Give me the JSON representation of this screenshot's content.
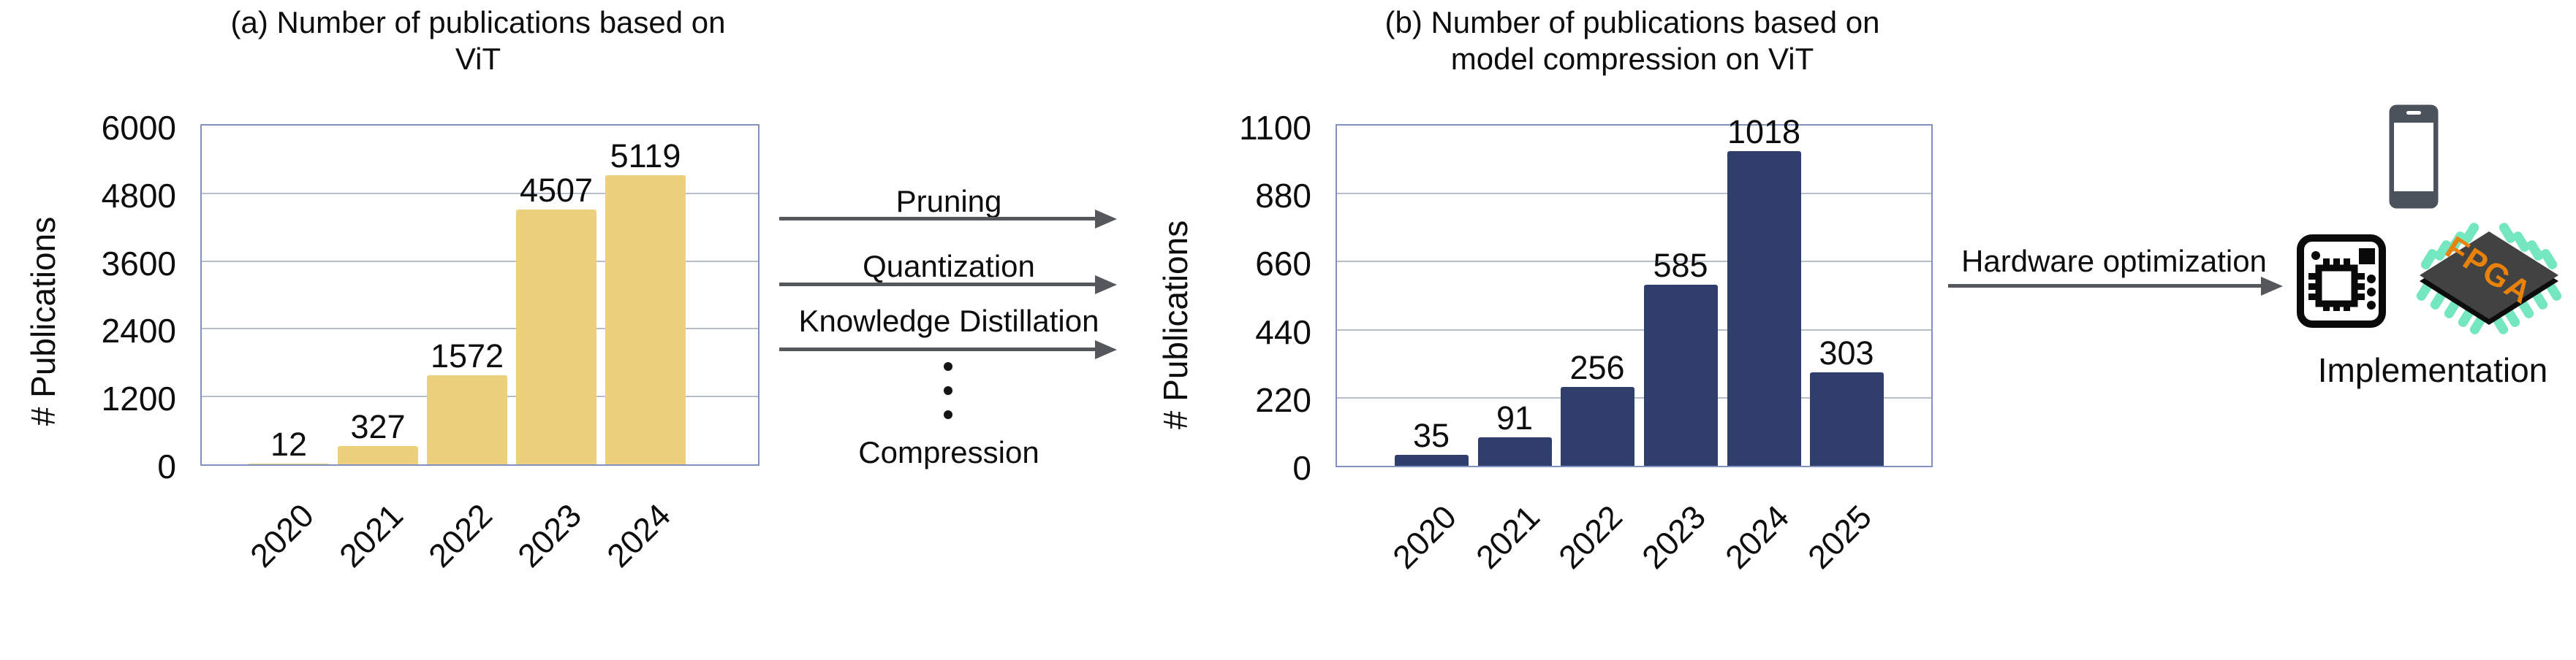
{
  "chart_data": [
    {
      "panel": "a",
      "type": "bar",
      "title": "(a) Number of publications based on ViT",
      "title_lines": [
        "(a) Number of publications based on",
        "ViT"
      ],
      "categories": [
        "2020",
        "2021",
        "2022",
        "2023",
        "2024"
      ],
      "values": [
        12,
        327,
        1572,
        4507,
        5119
      ],
      "xlabel": "",
      "ylabel": "# Publications",
      "ylim": [
        0,
        6000
      ],
      "yticks": [
        0,
        1200,
        2400,
        3600,
        4800,
        6000
      ],
      "grid": true,
      "legend": false,
      "value_labels": [
        12,
        327,
        1572,
        4507,
        5119
      ],
      "bar_color": "#edd07b"
    },
    {
      "panel": "b",
      "type": "bar",
      "title": "(b) Number of publications based on model compression on ViT",
      "title_lines": [
        "(b) Number of publications based on",
        "model compression on ViT"
      ],
      "categories": [
        "2020",
        "2021",
        "2022",
        "2023",
        "2024",
        "2025"
      ],
      "values": [
        35,
        91,
        256,
        585,
        1018,
        303
      ],
      "xlabel": "",
      "ylabel": "# Publications",
      "ylim": [
        0,
        1100
      ],
      "yticks": [
        0,
        220,
        440,
        660,
        880,
        1100
      ],
      "grid": true,
      "legend": false,
      "value_labels": [
        35,
        91,
        256,
        585,
        1018,
        303
      ],
      "bar_color": "#2f3e6b"
    }
  ],
  "flow": {
    "arrows": [
      "Pruning",
      "Quantization",
      "Knowledge Distillation"
    ],
    "ellipsis_dot_count": 3,
    "bottom_label": "Compression",
    "hardware_label": "Hardware optimization",
    "implementation_label": "Implementation",
    "fpga_text": "FPGA"
  },
  "colors": {
    "bar_a": "#edd07b",
    "bar_b": "#2f3e6b",
    "plot_border": "#8192bf",
    "gridline": "#b9bfca",
    "arrow": "#54585c",
    "text": "#111111",
    "phone_body": "#4b525c",
    "fpga_body": "#424242",
    "fpga_pins": "#74e6c0",
    "fpga_text": "#e8820a",
    "chip_stroke": "#0a0a0a"
  }
}
